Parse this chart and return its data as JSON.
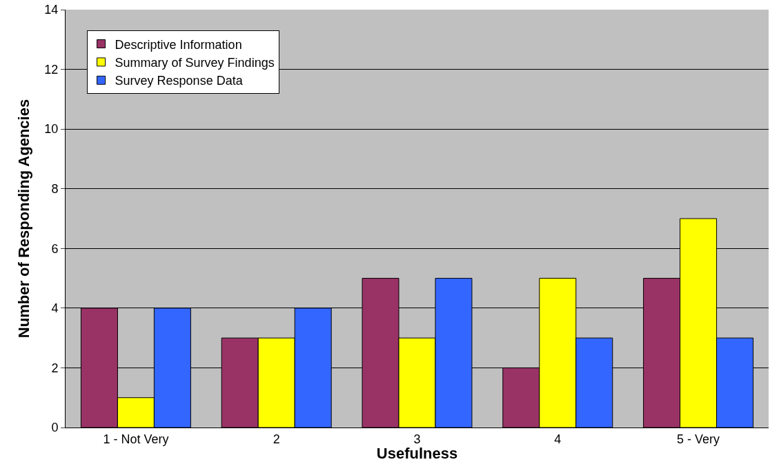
{
  "chart_data": {
    "type": "bar",
    "xlabel": "Usefulness",
    "ylabel": "Number of Responding Agencies",
    "categories": [
      "1 - Not Very",
      "2",
      "3",
      "4",
      "5 - Very"
    ],
    "series": [
      {
        "name": "Descriptive Information",
        "color": "#993366",
        "values": [
          4,
          3,
          5,
          2,
          5
        ]
      },
      {
        "name": "Summary of Survey Findings",
        "color": "#ffff00",
        "values": [
          1,
          3,
          3,
          5,
          7
        ]
      },
      {
        "name": "Survey Response Data",
        "color": "#3366ff",
        "values": [
          4,
          4,
          5,
          3,
          3
        ]
      }
    ],
    "ylim": [
      0,
      14
    ],
    "yticks": [
      0,
      2,
      4,
      6,
      8,
      10,
      12,
      14
    ],
    "grid": "y",
    "legend": "top left"
  }
}
